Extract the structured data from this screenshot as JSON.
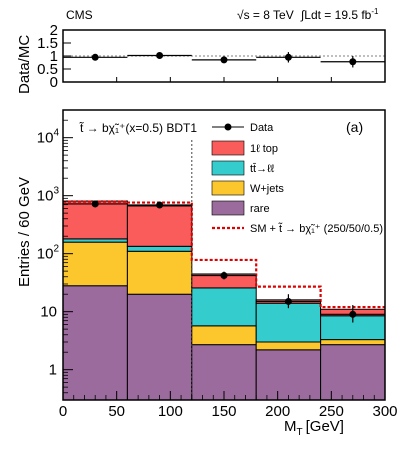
{
  "header": {
    "experiment": "CMS",
    "energy": "√s = 8 TeV",
    "lumi": "∫Ldt = 19.5 fb",
    "lumi_sup": "-1"
  },
  "chart_data": [
    {
      "type": "scatter",
      "panel": "ratio",
      "ylabel": "Data/MC",
      "ylim": [
        0,
        2
      ],
      "yticks": [
        "0",
        "0.5",
        "1",
        "1.5",
        "2"
      ],
      "x": [
        30,
        90,
        150,
        210,
        270
      ],
      "xerr": 30,
      "y": [
        0.95,
        1.02,
        0.85,
        0.95,
        0.78
      ],
      "yerr": [
        0.05,
        0.05,
        0.1,
        0.2,
        0.22
      ],
      "reference": 1
    },
    {
      "type": "bar",
      "panel": "main",
      "stacked": true,
      "log_y": true,
      "xlabel": "M",
      "xlabel_sub": "T",
      "xlabel_unit": "[GeV]",
      "ylabel": "Entries / 60 GeV",
      "xlim": [
        0,
        300
      ],
      "ylim": [
        0.3,
        30000
      ],
      "xticks": [
        "0",
        "50",
        "100",
        "150",
        "200",
        "250",
        "300"
      ],
      "yticks": [
        {
          "base": "1",
          "exp": "",
          "value": 1
        },
        {
          "base": "10",
          "exp": "",
          "value": 10
        },
        {
          "base": "10",
          "exp": "2",
          "value": 100
        },
        {
          "base": "10",
          "exp": "3",
          "value": 1000
        },
        {
          "base": "10",
          "exp": "4",
          "value": 10000
        }
      ],
      "bin_edges": [
        0,
        60,
        120,
        180,
        240,
        300
      ],
      "series": [
        {
          "name": "rare",
          "color": "#9a6b9c",
          "values": [
            28,
            20,
            2.7,
            2.2,
            2.7
          ]
        },
        {
          "name": "W+jets",
          "color": "#fcc72d",
          "values": [
            130,
            90,
            3.0,
            0.8,
            0.6
          ]
        },
        {
          "name": "tt̄→ℓℓ",
          "color": "#34cccc",
          "values": [
            22,
            24,
            20,
            11,
            5.2
          ]
        },
        {
          "name": "1ℓ top",
          "color": "#fa5b5b",
          "values": [
            630,
            530,
            19,
            2.0,
            2.5
          ]
        }
      ],
      "signal": {
        "name": "SM + t̃ → bχ̃₁⁺ (250/50/0.5)",
        "color": "#e00000",
        "values": [
          790,
          760,
          78,
          27,
          12
        ]
      },
      "data": {
        "name": "Data",
        "x": [
          30,
          90,
          150,
          210,
          270
        ],
        "y": [
          720,
          690,
          42,
          15,
          9
        ],
        "yerr_low": [
          25,
          25,
          6,
          3.5,
          2.5
        ],
        "yerr_high": [
          25,
          25,
          7,
          5,
          4
        ]
      },
      "cut_line_x": 120,
      "annotation": "t̃ → bχ̃₁⁺(x=0.5) BDT1",
      "panel_label": "(a)",
      "legend_position": "top-right"
    }
  ]
}
